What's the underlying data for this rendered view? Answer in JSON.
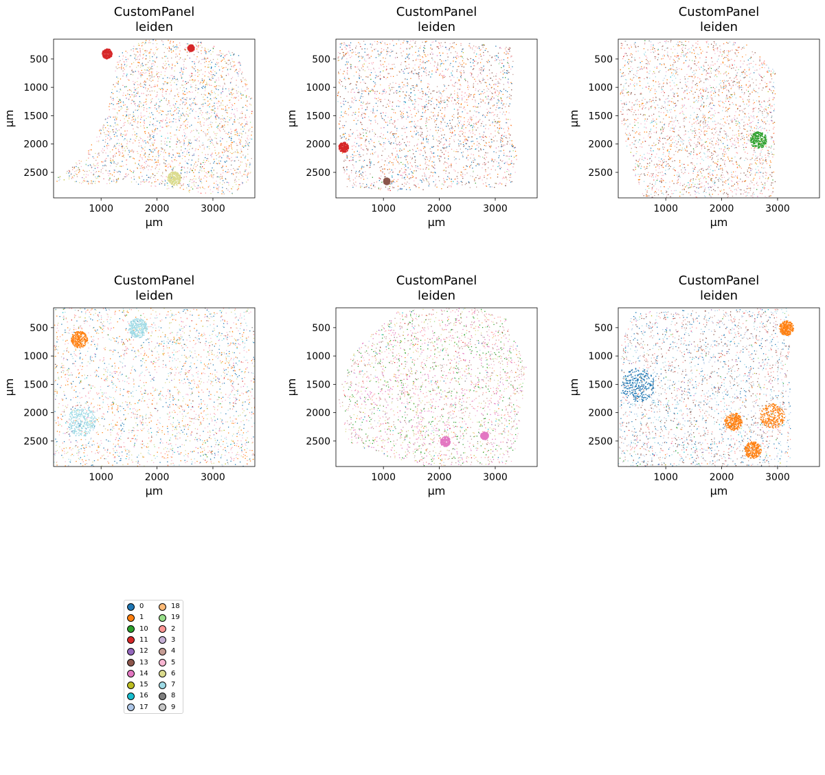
{
  "chart_data": [
    {
      "type": "scatter",
      "title_line1": "CustomPanel",
      "title_line2": "leiden",
      "xlabel": "µm",
      "ylabel": "µm",
      "xlim": [
        150,
        3750
      ],
      "ylim": [
        2950,
        150
      ],
      "xticks": [
        1000,
        2000,
        3000
      ],
      "yticks": [
        500,
        1000,
        1500,
        2000,
        2500
      ],
      "xtick_labels": [
        "1000",
        "2000",
        "3000"
      ],
      "ytick_labels": [
        "500",
        "1000",
        "1500",
        "2000",
        "2500"
      ],
      "tissue": [
        [
          200,
          2600
        ],
        [
          700,
          2200
        ],
        [
          1100,
          1500
        ],
        [
          1300,
          400
        ],
        [
          1800,
          150
        ],
        [
          2700,
          170
        ],
        [
          3450,
          400
        ],
        [
          3700,
          1200
        ],
        [
          3680,
          2600
        ],
        [
          3350,
          2900
        ],
        [
          2600,
          2850
        ],
        [
          1600,
          2700
        ],
        [
          700,
          2700
        ],
        [
          150,
          2650
        ]
      ],
      "dominant": [
        "0",
        "1",
        "6",
        "2",
        "5",
        "4"
      ],
      "hotspots": [
        {
          "cluster": "11",
          "cx": 1100,
          "cy": 400,
          "r": 90
        },
        {
          "cluster": "11",
          "cx": 2600,
          "cy": 300,
          "r": 60
        },
        {
          "cluster": "6",
          "cx": 2300,
          "cy": 2600,
          "r": 120
        }
      ]
    },
    {
      "type": "scatter",
      "title_line1": "CustomPanel",
      "title_line2": "leiden",
      "xlabel": "µm",
      "ylabel": "µm",
      "xlim": [
        150,
        3750
      ],
      "ylim": [
        2950,
        150
      ],
      "xticks": [
        1000,
        2000,
        3000
      ],
      "yticks": [
        500,
        1000,
        1500,
        2000,
        2500
      ],
      "xtick_labels": [
        "1000",
        "2000",
        "3000"
      ],
      "ytick_labels": [
        "500",
        "1000",
        "1500",
        "2000",
        "2500"
      ],
      "tissue": [
        [
          180,
          200
        ],
        [
          1000,
          160
        ],
        [
          2000,
          170
        ],
        [
          3250,
          260
        ],
        [
          3350,
          600
        ],
        [
          3250,
          1500
        ],
        [
          3400,
          2300
        ],
        [
          3300,
          2750
        ],
        [
          2200,
          2780
        ],
        [
          1200,
          2820
        ],
        [
          300,
          2750
        ],
        [
          170,
          1500
        ]
      ],
      "dominant": [
        "0",
        "1",
        "2",
        "4",
        "5",
        "13"
      ],
      "hotspots": [
        {
          "cluster": "11",
          "cx": 280,
          "cy": 2050,
          "r": 90
        },
        {
          "cluster": "13",
          "cx": 1050,
          "cy": 2650,
          "r": 60
        }
      ]
    },
    {
      "type": "scatter",
      "title_line1": "CustomPanel",
      "title_line2": "leiden",
      "xlabel": "µm",
      "ylabel": "µm",
      "xlim": [
        150,
        3750
      ],
      "ylim": [
        2950,
        150
      ],
      "xticks": [
        1000,
        2000,
        3000
      ],
      "yticks": [
        500,
        1000,
        1500,
        2000,
        2500
      ],
      "xtick_labels": [
        "1000",
        "2000",
        "3000"
      ],
      "ytick_labels": [
        "500",
        "1000",
        "1500",
        "2000",
        "2500"
      ],
      "tissue": [
        [
          180,
          160
        ],
        [
          1600,
          170
        ],
        [
          2400,
          200
        ],
        [
          2950,
          700
        ],
        [
          2950,
          2950
        ],
        [
          600,
          2950
        ],
        [
          350,
          2300
        ],
        [
          180,
          1500
        ]
      ],
      "dominant": [
        "2",
        "5",
        "4",
        "1",
        "13",
        "7"
      ],
      "hotspots": [
        {
          "cluster": "10",
          "cx": 2650,
          "cy": 1920,
          "r": 150
        }
      ]
    },
    {
      "type": "scatter",
      "title_line1": "CustomPanel",
      "title_line2": "leiden",
      "xlabel": "µm",
      "ylabel": "µm",
      "xlim": [
        150,
        3750
      ],
      "ylim": [
        2950,
        150
      ],
      "xticks": [
        1000,
        2000,
        3000
      ],
      "yticks": [
        500,
        1000,
        1500,
        2000,
        2500
      ],
      "xtick_labels": [
        "1000",
        "2000",
        "3000"
      ],
      "ytick_labels": [
        "500",
        "1000",
        "1500",
        "2000",
        "2500"
      ],
      "tissue": [
        [
          150,
          150
        ],
        [
          3750,
          150
        ],
        [
          3750,
          2950
        ],
        [
          150,
          2950
        ]
      ],
      "dominant": [
        "1",
        "2",
        "7",
        "5",
        "6",
        "0"
      ],
      "hotspots": [
        {
          "cluster": "7",
          "cx": 1650,
          "cy": 500,
          "r": 170
        },
        {
          "cluster": "7",
          "cx": 650,
          "cy": 2150,
          "r": 260
        },
        {
          "cluster": "1",
          "cx": 600,
          "cy": 700,
          "r": 150
        }
      ]
    },
    {
      "type": "scatter",
      "title_line1": "CustomPanel",
      "title_line2": "leiden",
      "xlabel": "µm",
      "ylabel": "µm",
      "xlim": [
        150,
        3750
      ],
      "ylim": [
        2950,
        150
      ],
      "xticks": [
        1000,
        2000,
        3000
      ],
      "yticks": [
        500,
        1000,
        1500,
        2000,
        2500
      ],
      "xtick_labels": [
        "1000",
        "2000",
        "3000"
      ],
      "ytick_labels": [
        "500",
        "1000",
        "1500",
        "2000",
        "2500"
      ],
      "tissue": [
        [
          450,
          900
        ],
        [
          1300,
          170
        ],
        [
          2700,
          150
        ],
        [
          3200,
          350
        ],
        [
          3550,
          1200
        ],
        [
          3400,
          2400
        ],
        [
          3300,
          2900
        ],
        [
          1800,
          2950
        ],
        [
          1000,
          2750
        ],
        [
          350,
          2500
        ],
        [
          180,
          1700
        ]
      ],
      "dominant": [
        "6",
        "2",
        "4",
        "10",
        "5",
        "14"
      ],
      "hotspots": [
        {
          "cluster": "14",
          "cx": 2100,
          "cy": 2500,
          "r": 90
        },
        {
          "cluster": "14",
          "cx": 2800,
          "cy": 2400,
          "r": 70
        }
      ]
    },
    {
      "type": "scatter",
      "title_line1": "CustomPanel",
      "title_line2": "leiden",
      "xlabel": "µm",
      "ylabel": "µm",
      "xlim": [
        150,
        3750
      ],
      "ylim": [
        2950,
        150
      ],
      "xticks": [
        1000,
        2000,
        3000
      ],
      "yticks": [
        500,
        1000,
        1500,
        2000,
        2500
      ],
      "xtick_labels": [
        "1000",
        "2000",
        "3000"
      ],
      "ytick_labels": [
        "500",
        "1000",
        "1500",
        "2000",
        "2500"
      ],
      "tissue": [
        [
          400,
          200
        ],
        [
          3200,
          150
        ],
        [
          3250,
          2950
        ],
        [
          150,
          2950
        ],
        [
          200,
          800
        ]
      ],
      "dominant": [
        "0",
        "4",
        "7",
        "17",
        "2",
        "13"
      ],
      "hotspots": [
        {
          "cluster": "1",
          "cx": 2200,
          "cy": 2150,
          "r": 160
        },
        {
          "cluster": "1",
          "cx": 2900,
          "cy": 2050,
          "r": 220
        },
        {
          "cluster": "1",
          "cx": 2550,
          "cy": 2650,
          "r": 150
        },
        {
          "cluster": "1",
          "cx": 3150,
          "cy": 500,
          "r": 130
        },
        {
          "cluster": "0",
          "cx": 500,
          "cy": 1500,
          "r": 300
        }
      ]
    }
  ],
  "legend": {
    "placement": "below-left",
    "items": [
      {
        "label": "0",
        "color": "#1f77b4"
      },
      {
        "label": "1",
        "color": "#ff7f0e"
      },
      {
        "label": "10",
        "color": "#2ca02c"
      },
      {
        "label": "11",
        "color": "#d62728"
      },
      {
        "label": "12",
        "color": "#9467bd"
      },
      {
        "label": "13",
        "color": "#8c564b"
      },
      {
        "label": "14",
        "color": "#e377c2"
      },
      {
        "label": "15",
        "color": "#bcbd22"
      },
      {
        "label": "16",
        "color": "#17becf"
      },
      {
        "label": "17",
        "color": "#aec7e8"
      },
      {
        "label": "18",
        "color": "#ffbb78"
      },
      {
        "label": "19",
        "color": "#98df8a"
      },
      {
        "label": "2",
        "color": "#ff9896"
      },
      {
        "label": "3",
        "color": "#c5b0d5"
      },
      {
        "label": "4",
        "color": "#c49c94"
      },
      {
        "label": "5",
        "color": "#f7b6d2"
      },
      {
        "label": "6",
        "color": "#dbdb8d"
      },
      {
        "label": "7",
        "color": "#9edae5"
      },
      {
        "label": "8",
        "color": "#7f7f7f"
      },
      {
        "label": "9",
        "color": "#c7c7c7"
      }
    ]
  }
}
